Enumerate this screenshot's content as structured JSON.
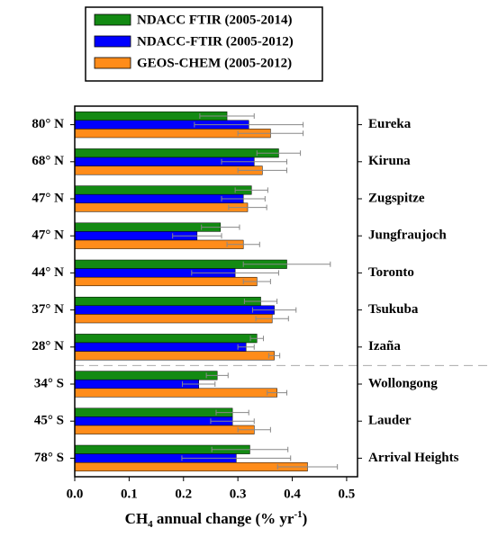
{
  "chart_data": {
    "type": "grouped-hbar-errorbars",
    "categories": [
      "Eureka",
      "Kiruna",
      "Zugspitze",
      "Jungfraujoch",
      "Toronto",
      "Tsukuba",
      "Izaña",
      "Wollongong",
      "Lauder",
      "Arrival Heights"
    ],
    "latitudes": [
      "80° N",
      "68° N",
      "47° N",
      "47° N",
      "44° N",
      "37° N",
      "28° N",
      "34° S",
      "45° S",
      "78° S"
    ],
    "series": [
      {
        "name": "NDACC FTIR (2005-2014)",
        "color": "#138a13",
        "values": [
          0.28,
          0.375,
          0.325,
          0.268,
          0.39,
          0.342,
          0.335,
          0.262,
          0.29,
          0.322
        ],
        "errors": [
          0.05,
          0.04,
          0.03,
          0.035,
          0.08,
          0.03,
          0.012,
          0.02,
          0.03,
          0.07
        ]
      },
      {
        "name": "NDACC-FTIR (2005-2012)",
        "color": "#0000ff",
        "values": [
          0.32,
          0.33,
          0.31,
          0.225,
          0.295,
          0.367,
          0.315,
          0.228,
          0.29,
          0.297
        ],
        "errors": [
          0.1,
          0.06,
          0.04,
          0.045,
          0.08,
          0.04,
          0.015,
          0.03,
          0.04,
          0.1
        ]
      },
      {
        "name": "GEOS-CHEM (2005-2012)",
        "color": "#ff8c1a",
        "values": [
          0.36,
          0.345,
          0.318,
          0.31,
          0.335,
          0.363,
          0.367,
          0.372,
          0.33,
          0.428
        ],
        "errors": [
          0.06,
          0.045,
          0.035,
          0.03,
          0.025,
          0.03,
          0.01,
          0.018,
          0.03,
          0.055
        ]
      }
    ],
    "xlim": [
      0,
      0.52
    ],
    "xticks": [
      {
        "value": 0,
        "label": "0.0"
      },
      0.1,
      0.2,
      0.3,
      0.4,
      0.5
    ],
    "x_label": {
      "main": "CH",
      "sub": "4",
      "middle": " annual change (% yr",
      "sup": "-1",
      "end": ")"
    }
  }
}
